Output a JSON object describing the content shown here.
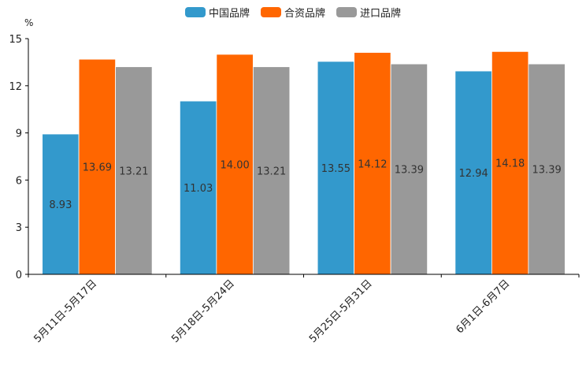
{
  "chart_data": {
    "type": "bar",
    "title": "",
    "xlabel": "",
    "ylabel": "%",
    "ylim": [
      0,
      15
    ],
    "yticks": [
      0,
      3,
      6,
      9,
      12,
      15
    ],
    "grid": false,
    "legend_position": "top-center",
    "categories": [
      "5月11日-5月17日",
      "5月18日-5月24日",
      "5月25日-5月31日",
      "6月1日-6月7日"
    ],
    "series": [
      {
        "name": "中国品牌",
        "color": "#3399cc",
        "values": [
          8.93,
          11.03,
          13.55,
          12.94
        ]
      },
      {
        "name": "合资品牌",
        "color": "#ff6600",
        "values": [
          13.69,
          14.0,
          14.12,
          14.18
        ]
      },
      {
        "name": "进口品牌",
        "color": "#999999",
        "values": [
          13.21,
          13.21,
          13.39,
          13.39
        ]
      }
    ],
    "value_labels": [
      [
        "8.93",
        "11.03",
        "13.55",
        "12.94"
      ],
      [
        "13.69",
        "14.00",
        "14.12",
        "14.18"
      ],
      [
        "13.21",
        "13.21",
        "13.39",
        "13.39"
      ]
    ]
  }
}
